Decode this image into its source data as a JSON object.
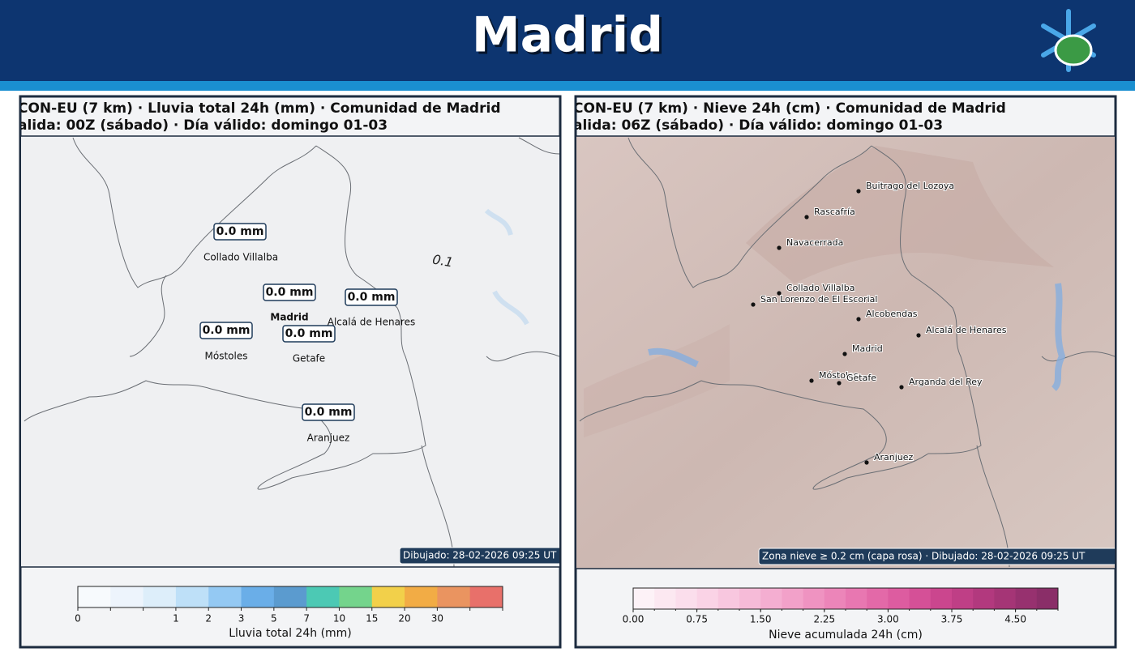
{
  "header": {
    "title": "Madrid"
  },
  "panels": [
    {
      "title_lines": [
        "CON-EU (7 km) · Lluvia total 24h (mm) · Comunidad de Madrid",
        "alida: 00Z (sábado) · Día válido: domingo 01-03"
      ],
      "value_labels": [
        "0.0 mm",
        "0.0 mm",
        "0.0 mm",
        "0.0 mm",
        "0.0 mm",
        "0.0 mm"
      ],
      "places": [
        "Collado Villalba",
        "Madrid",
        "Alcalá de Henares",
        "Móstoles",
        "Getafe",
        "Aranjuez"
      ],
      "contour_label": "0.1",
      "stamp": "Dibujado: 28-02-2026 09:25 UT",
      "colorbar": {
        "label": "Lluvia total 24h (mm)",
        "colors": [
          "#f7fafd",
          "#edf4fc",
          "#ddeefa",
          "#bee0f8",
          "#94c9f3",
          "#6aaee8",
          "#5b9bcf",
          "#4cc9b4",
          "#74d48c",
          "#f2d04a",
          "#f2ac45",
          "#ea9460",
          "#e8706a"
        ],
        "ticks": [
          0,
          null,
          null,
          1,
          2,
          3,
          5,
          7,
          10,
          15,
          20,
          30,
          null,
          null
        ]
      }
    },
    {
      "title_lines": [
        "CON-EU (7 km) · Nieve 24h (cm) · Comunidad de Madrid",
        "alida: 06Z (sábado) · Día válido: domingo 01-03"
      ],
      "places": [
        "Buitrago del Lozoya",
        "Rascafría",
        "Navacerrada",
        "Collado Villalba",
        "San Lorenzo de El Escorial",
        "Alcobendas",
        "Alcalá de Henares",
        "Madrid",
        "Móstoles",
        "Getafe",
        "Arganda del Rey",
        "Aranjuez"
      ],
      "stamp": "Zona nieve ≥ 0.2 cm (capa rosa) · Dibujado: 28-02-2026 09:25 UT",
      "colorbar": {
        "label": "Nieve acumulada 24h (cm)",
        "lim": [
          0,
          5
        ],
        "colors": [
          "#fdf2f7",
          "#fce8f1",
          "#fbdeec",
          "#fad3e6",
          "#f8c7df",
          "#f6bbd8",
          "#f4aed1",
          "#f2a1c9",
          "#ef93c1",
          "#ec85b9",
          "#e877b1",
          "#e369a8",
          "#dd5ca0",
          "#d55097",
          "#cb468e",
          "#bf3f86",
          "#b2397e",
          "#a53576",
          "#97316f",
          "#8a2e68"
        ],
        "ticks": [
          {
            "value": 0,
            "label": "0.00"
          },
          {
            "value": 0.75,
            "label": "0.75"
          },
          {
            "value": 1.5,
            "label": "1.50"
          },
          {
            "value": 2.25,
            "label": "2.25"
          },
          {
            "value": 3,
            "label": "3.00"
          },
          {
            "value": 3.75,
            "label": "3.75"
          },
          {
            "value": 4.5,
            "label": "4.50"
          }
        ]
      }
    }
  ]
}
